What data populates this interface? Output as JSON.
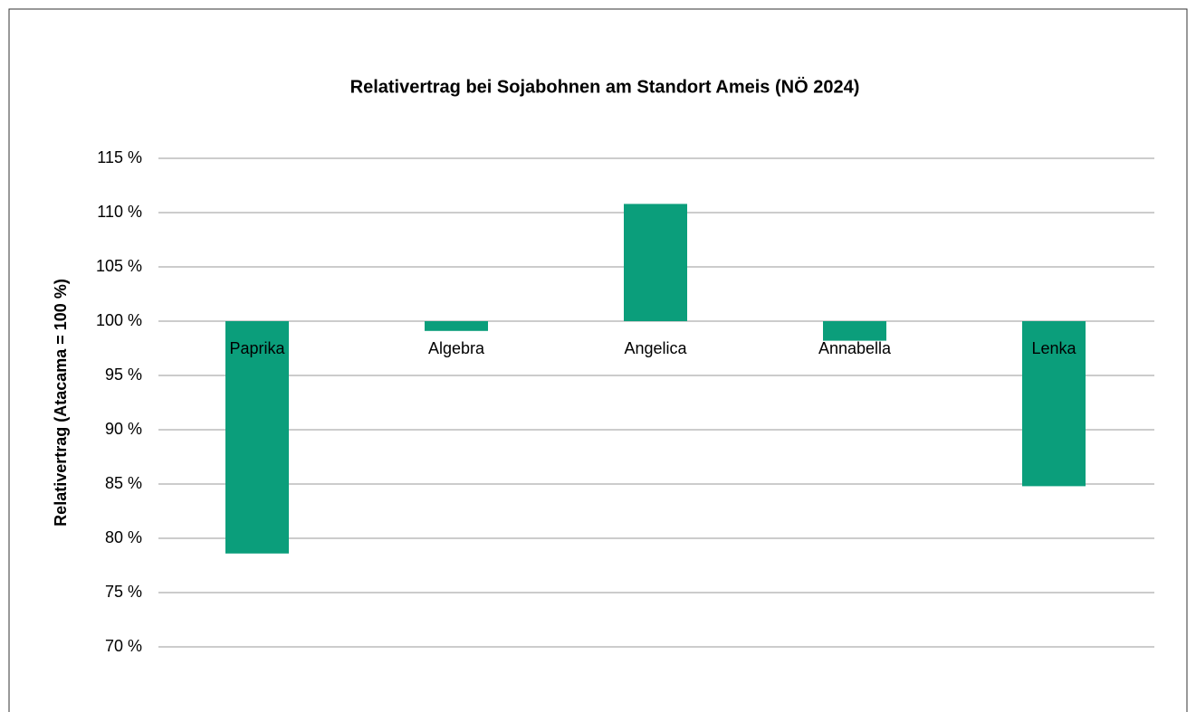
{
  "chart_data": {
    "type": "bar",
    "title": "Relativertrag bei Sojabohnen am Standort Ameis (NÖ 2024)",
    "y_label": "Relativertrag (Atacama = 100 %)",
    "categories": [
      "Paprika",
      "Algebra",
      "Angelica",
      "Annabella",
      "Lenka"
    ],
    "values": [
      78.6,
      99.1,
      110.8,
      98.2,
      84.8
    ],
    "color": "#0b9e7b",
    "baseline": 100,
    "ylim": [
      70,
      115
    ],
    "yticks": [
      {
        "value": 70,
        "label": "70 %"
      },
      {
        "value": 75,
        "label": "75 %"
      },
      {
        "value": 80,
        "label": "80 %"
      },
      {
        "value": 85,
        "label": "85 %"
      },
      {
        "value": 90,
        "label": "90 %"
      },
      {
        "value": 95,
        "label": "95 %"
      },
      {
        "value": 100,
        "label": "100 %"
      },
      {
        "value": 105,
        "label": "105 %"
      },
      {
        "value": 110,
        "label": "110 %"
      },
      {
        "value": 115,
        "label": "115 %"
      }
    ],
    "grid": true
  }
}
